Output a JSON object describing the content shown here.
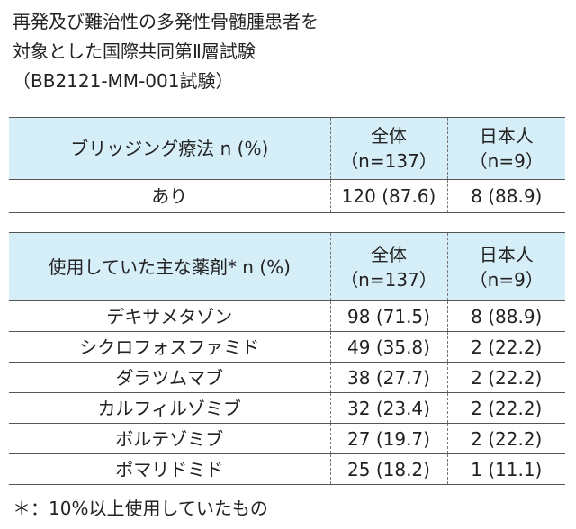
{
  "title": [
    "再発及び難治性の多発性骨髄腫患者を",
    "対象とした国際共同第Ⅱ層試験",
    "（BB2121-MM-001試験）"
  ],
  "tables": [
    {
      "header": [
        [
          "ブリッジング療法 n (%)"
        ],
        [
          "全体",
          "（n=137）"
        ],
        [
          "日本人",
          "（n=9）"
        ]
      ],
      "rows": [
        [
          "あり",
          "120 (87.6)",
          "8 (88.9)"
        ]
      ]
    },
    {
      "header": [
        [
          "使用していた主な薬剤* n (%)"
        ],
        [
          "全体",
          "（n=137）"
        ],
        [
          "日本人",
          "（n=9）"
        ]
      ],
      "rows": [
        [
          "デキサメタゾン",
          "98 (71.5)",
          "8 (88.9)"
        ],
        [
          "シクロフォスファミド",
          "49 (35.8)",
          "2 (22.2)"
        ],
        [
          "ダラツムマブ",
          "38 (27.7)",
          "2 (22.2)"
        ],
        [
          "カルフィルゾミブ",
          "32 (23.4)",
          "2 (22.2)"
        ],
        [
          "ボルテゾミブ",
          "27 (19.7)",
          "2 (22.2)"
        ],
        [
          "ポマリドミド",
          "25 (18.2)",
          "1 (11.1)"
        ]
      ]
    }
  ],
  "footnote": "＊：10%以上使用していたもの"
}
